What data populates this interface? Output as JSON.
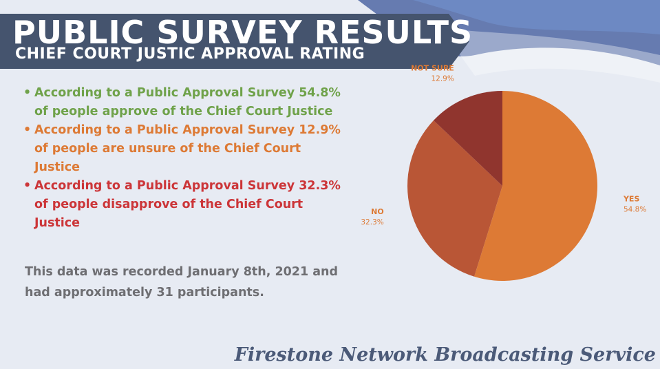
{
  "header": {
    "title": "PUBLIC SURVEY RESULTS",
    "subtitle": "CHIEF COURT JUSTIC APPROVAL RATING"
  },
  "bullets": [
    {
      "text": "According to a Public Approval Survey 54.8% of people approve of the Chief Court Justice",
      "color": "#6fa24a"
    },
    {
      "text": "According to a Public Approval Survey 12.9% of people are unsure of the Chief Court Justice",
      "color": "#dd7a35"
    },
    {
      "text": "According to a Public Approval Survey 32.3% of people disapprove of the Chief Court Justice",
      "color": "#cc3538"
    }
  ],
  "note": "This data was recorded January 8th, 2021 and had approximately 31 participants.",
  "footer": "Firestone Network Broadcasting Service",
  "chart_data": {
    "type": "pie",
    "slices": [
      {
        "label": "YES",
        "value": 54.8,
        "value_label": "54.8%",
        "color": "#dd7a35"
      },
      {
        "label": "NO",
        "value": 32.3,
        "value_label": "32.3%",
        "color": "#b95636"
      },
      {
        "label": "NOT SURE",
        "value": 12.9,
        "value_label": "12.9%",
        "color": "#90352e"
      }
    ],
    "start_angle": "12 o'clock",
    "direction": "clockwise",
    "label_color": "#dd7a35"
  },
  "colors": {
    "banner": "#45546e",
    "background": "#e7ebf3",
    "note_text": "#6e6e72",
    "footer_text": "#4b5a78"
  }
}
